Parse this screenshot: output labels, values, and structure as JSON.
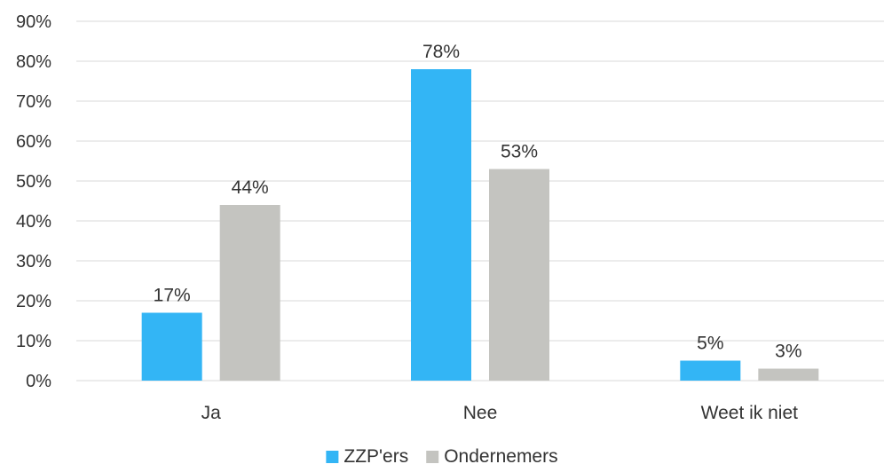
{
  "chart_data": {
    "type": "bar",
    "title": "",
    "xlabel": "",
    "ylabel": "",
    "categories": [
      "Ja",
      "Nee",
      "Weet ik niet"
    ],
    "series": [
      {
        "name": "ZZP'ers",
        "color": "#33b5f5",
        "values": [
          17,
          78,
          5
        ],
        "labels": [
          "17%",
          "78%",
          "5%"
        ]
      },
      {
        "name": "Ondernemers",
        "color": "#c4c4c0",
        "values": [
          44,
          53,
          3
        ],
        "labels": [
          "44%",
          "53%",
          "3%"
        ]
      }
    ],
    "ylim": [
      0,
      90
    ],
    "yticks": [
      0,
      10,
      20,
      30,
      40,
      50,
      60,
      70,
      80,
      90
    ],
    "ytick_labels": [
      "0%",
      "10%",
      "20%",
      "30%",
      "40%",
      "50%",
      "60%",
      "70%",
      "80%",
      "90%"
    ],
    "grid": true,
    "legend_position": "bottom"
  }
}
